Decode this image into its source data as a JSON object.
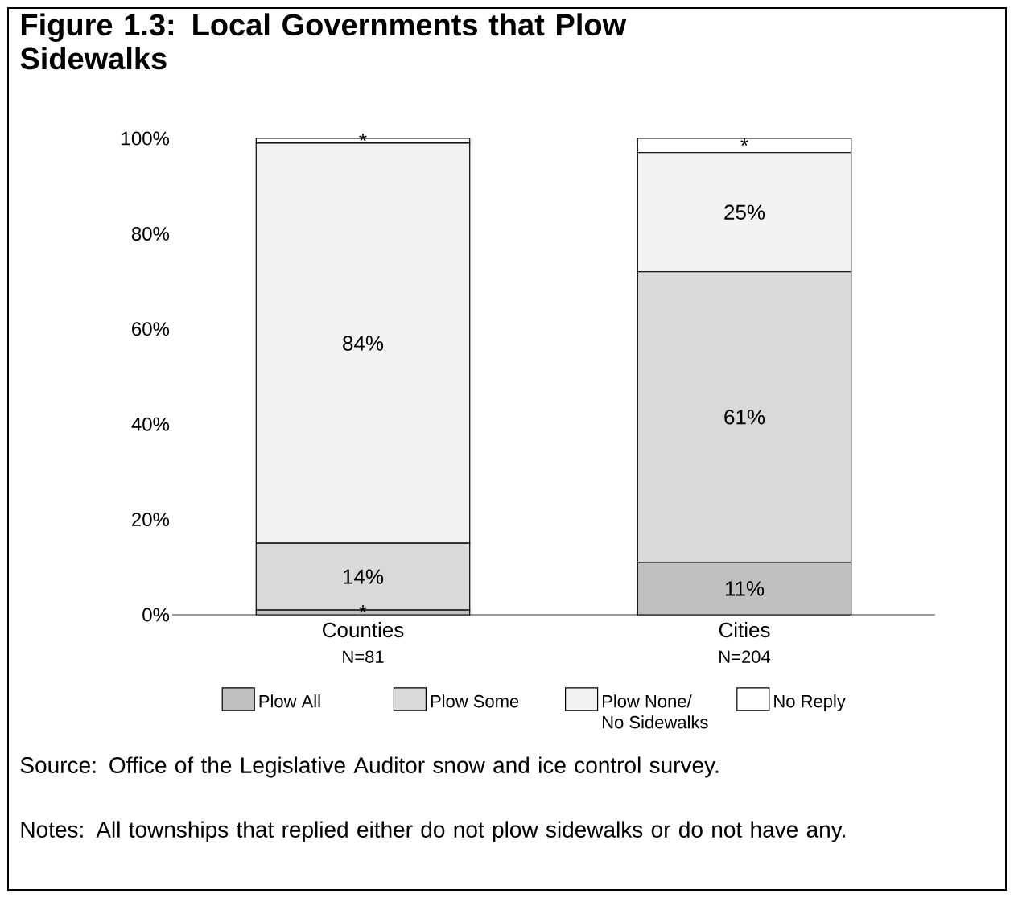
{
  "chart_data": {
    "type": "bar",
    "title": "Figure 1.3:  Local Governments that Plow Sidewalks",
    "categories": [
      "Counties",
      "Cities"
    ],
    "stacked": true,
    "series": [
      {
        "name": "Plow All",
        "color": "#c0c0c0",
        "values": [
          1,
          11
        ],
        "value_labels": [
          "*",
          "11%"
        ]
      },
      {
        "name": "Plow Some",
        "color": "#d9d9d9",
        "values": [
          14,
          61
        ],
        "value_labels": [
          "14%",
          "61%"
        ]
      },
      {
        "name": "Plow None/ No Sidewalks",
        "color": "#f2f2f2",
        "values": [
          84,
          25
        ],
        "value_labels": [
          "84%",
          "25%"
        ]
      },
      {
        "name": "No Reply",
        "color": "#ffffff",
        "values": [
          1,
          3
        ],
        "value_labels": [
          "*",
          "*"
        ]
      }
    ],
    "ylim": [
      0,
      100
    ],
    "yticks": [
      {
        "value": 0,
        "label": "0%"
      },
      {
        "value": 20,
        "label": "20%"
      },
      {
        "value": 40,
        "label": "40%"
      },
      {
        "value": 60,
        "label": "60%"
      },
      {
        "value": 80,
        "label": "80%"
      },
      {
        "value": 100,
        "label": "100%"
      }
    ],
    "grid": false,
    "legend": "bottom",
    "annotations": [
      "N=81",
      "N=204",
      "Source:  Office of the Legislative Auditor snow and ice control survey.",
      "Notes:  All townships that replied either do not plow sidewalks or do not have any."
    ]
  }
}
